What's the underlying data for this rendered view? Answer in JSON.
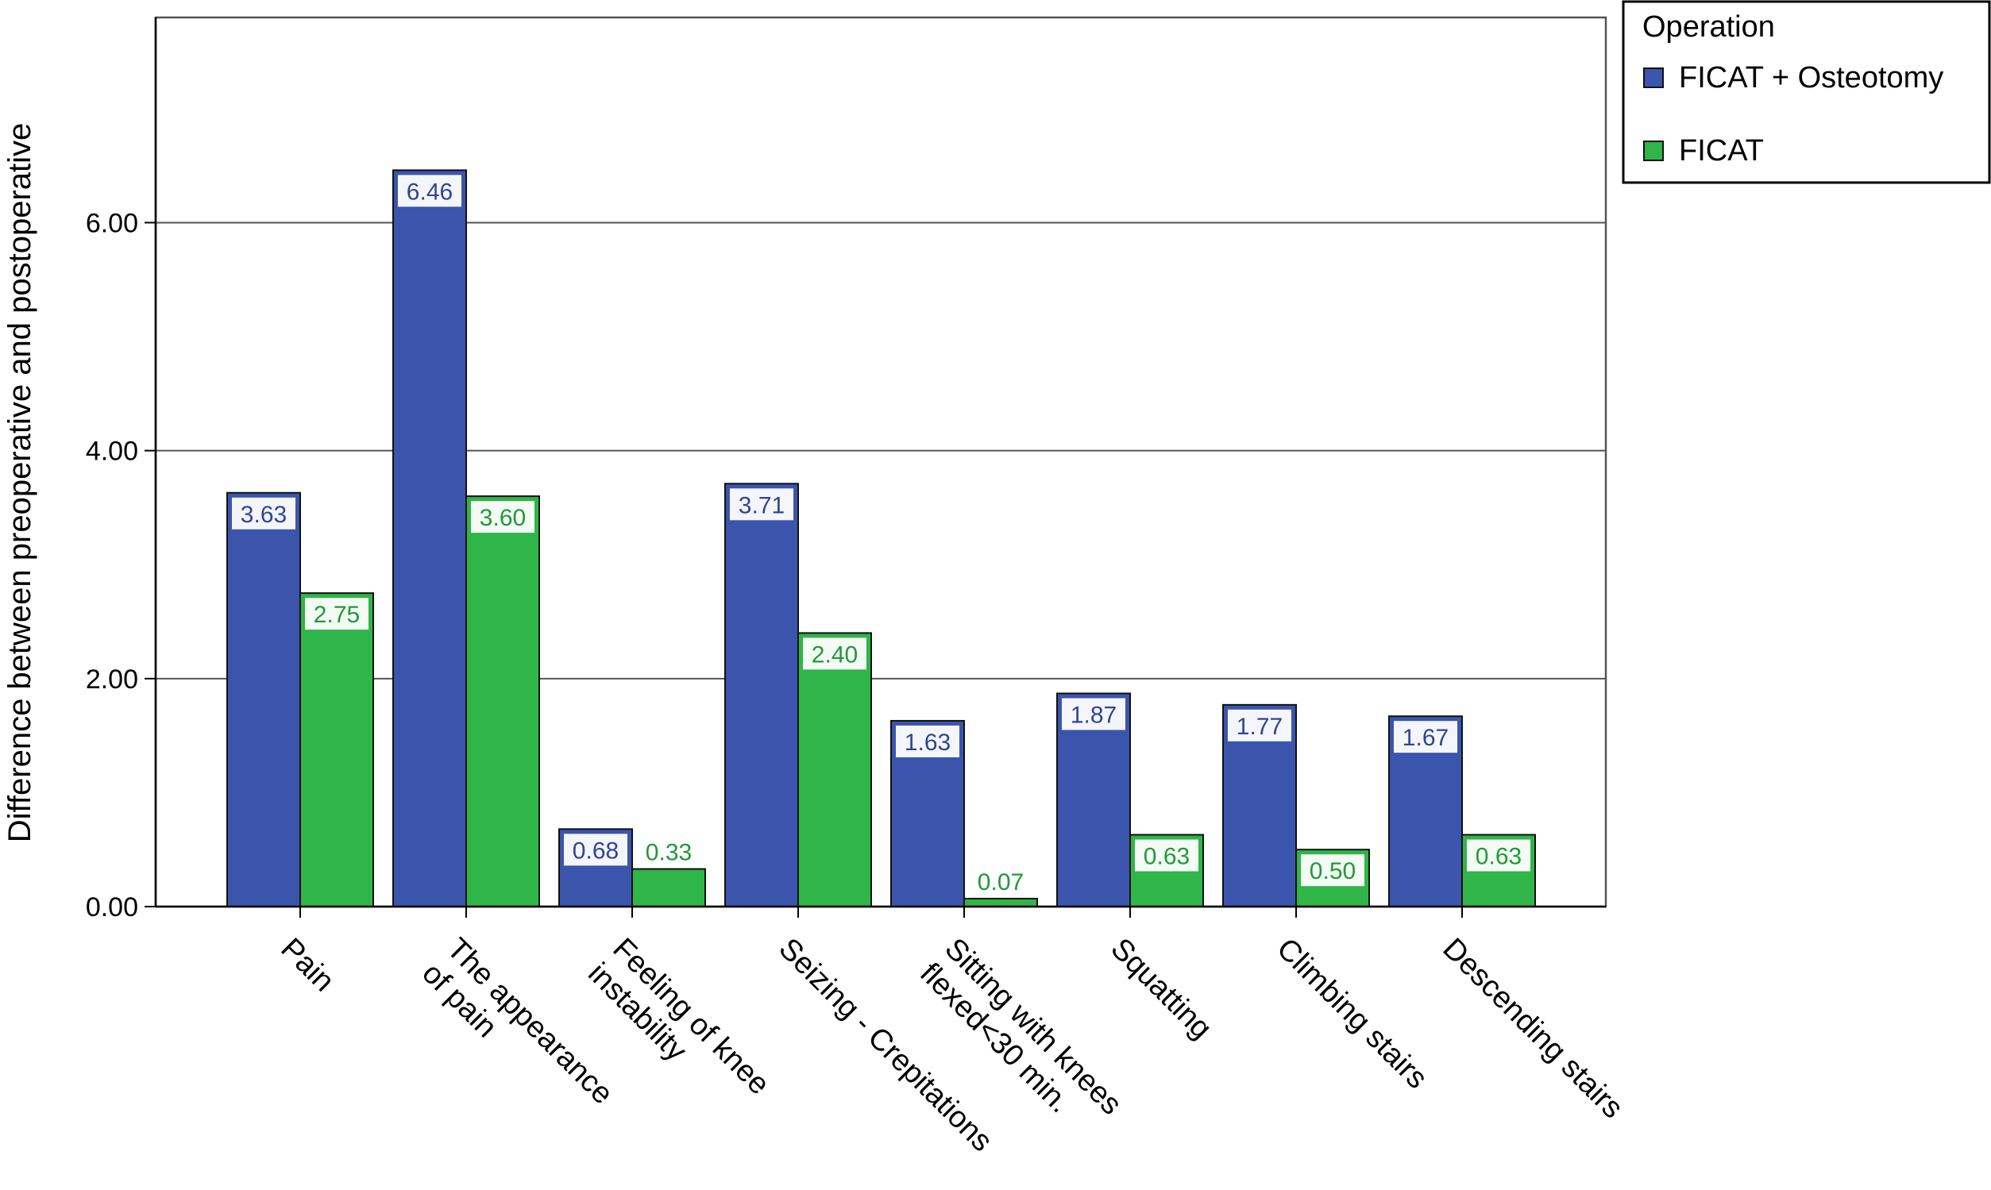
{
  "chart_data": {
    "type": "bar",
    "ylabel": "Difference between preoperative and postoperative",
    "xlabel": "",
    "ylim": [
      0,
      7.8
    ],
    "yticks": [
      0,
      2,
      4,
      6
    ],
    "ytick_labels": [
      "0.00",
      "2.00",
      "4.00",
      "6.00"
    ],
    "grid": true,
    "legend": {
      "title": "Operation",
      "placement": "top-right",
      "entries": [
        "FICAT + Osteotomy",
        "FICAT"
      ]
    },
    "categories": [
      [
        "Pain"
      ],
      [
        "The appearance",
        "of pain"
      ],
      [
        "Feeling of knee",
        "instability"
      ],
      [
        "Seizing - Crepitations"
      ],
      [
        "Sitting with knees",
        "flexed<30 min."
      ],
      [
        "Squatting"
      ],
      [
        "Climbing stairs"
      ],
      [
        "Descending stairs"
      ]
    ],
    "series": [
      {
        "name": "FICAT + Osteotomy",
        "color": "#3b55ad",
        "values": [
          3.63,
          6.46,
          0.68,
          3.71,
          1.63,
          1.87,
          1.77,
          1.67
        ],
        "labels": [
          "3.63",
          "6.46",
          "0.68",
          "3.71",
          "1.63",
          "1.87",
          "1.77",
          "1.67"
        ]
      },
      {
        "name": "FICAT",
        "color": "#2fb548",
        "values": [
          2.75,
          3.6,
          0.33,
          2.4,
          0.07,
          0.63,
          0.5,
          0.63
        ],
        "labels": [
          "2.75",
          "3.60",
          "0.33",
          "2.40",
          "0.07",
          "0.63",
          "0.50",
          "0.63"
        ]
      }
    ]
  }
}
